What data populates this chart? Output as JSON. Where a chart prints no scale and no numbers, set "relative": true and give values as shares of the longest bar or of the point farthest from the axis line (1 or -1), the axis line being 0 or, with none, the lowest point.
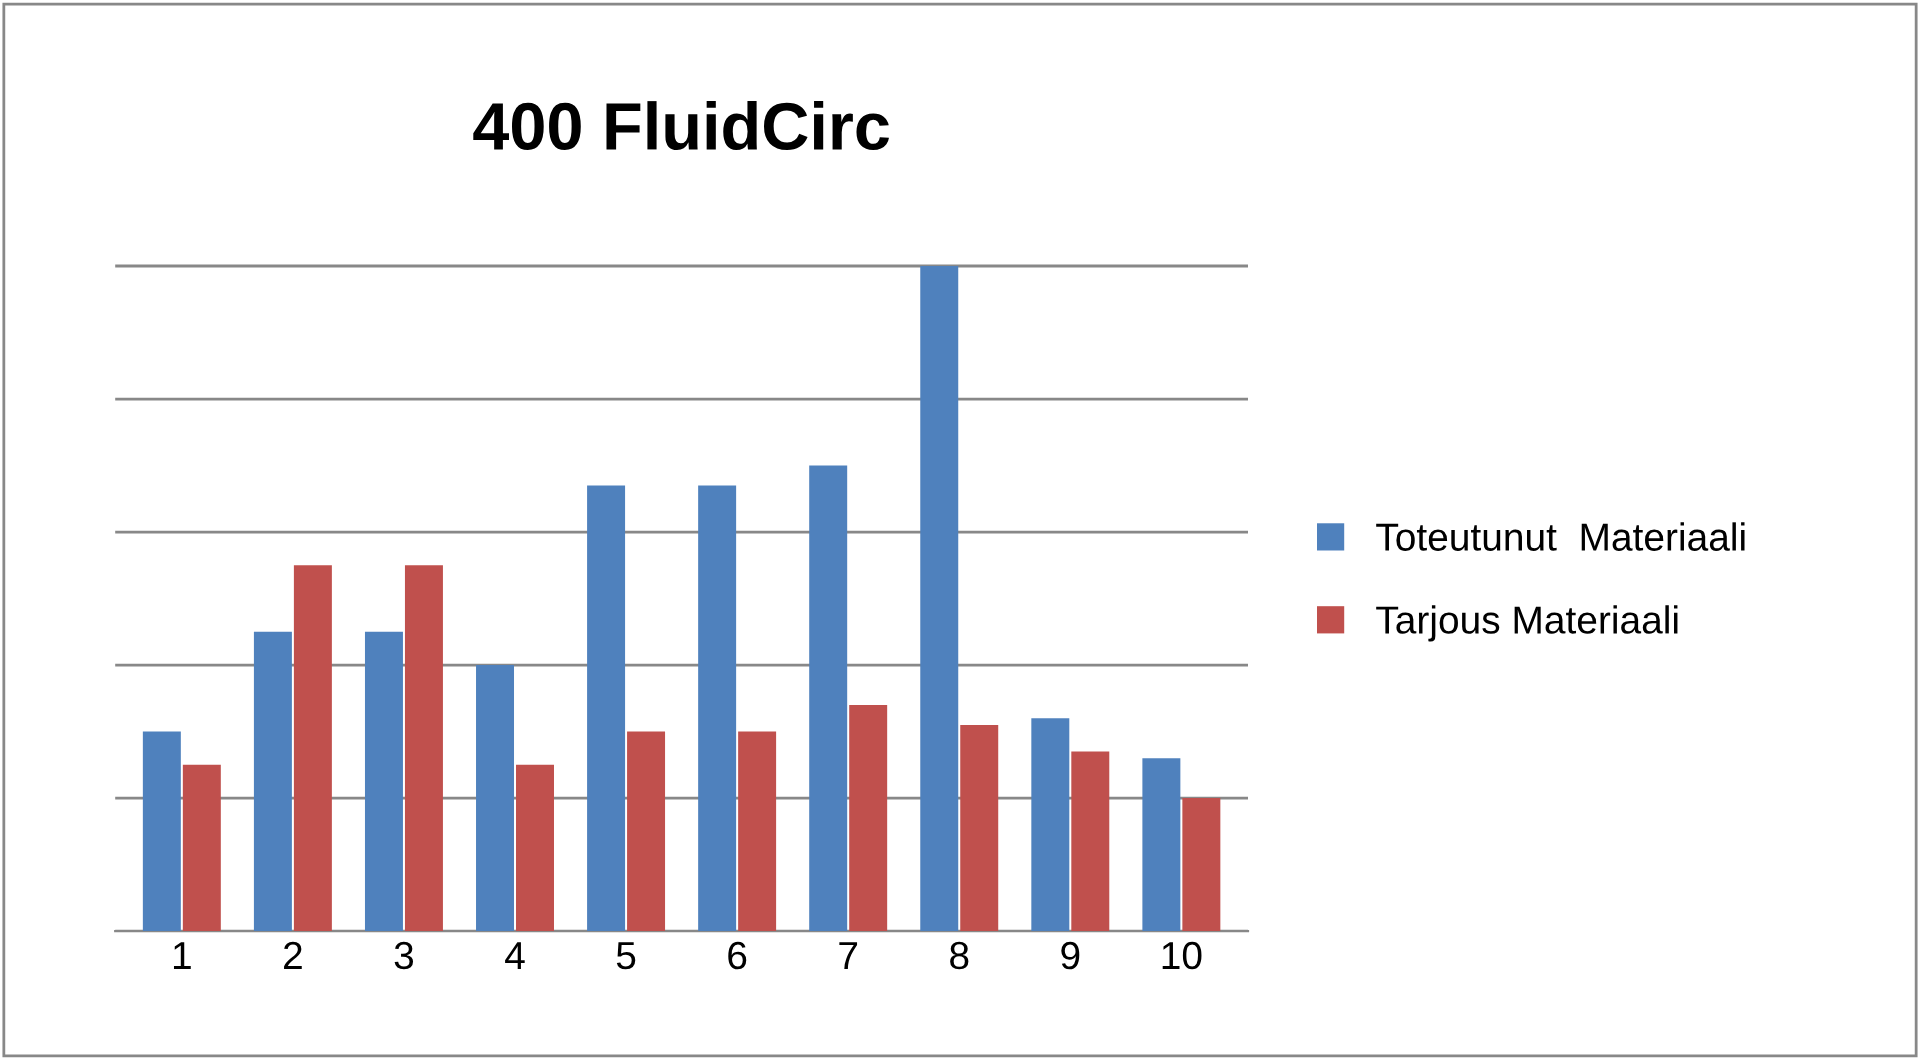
{
  "chart_data": {
    "type": "bar",
    "title": "400 FluidCirc",
    "relative": true,
    "categories": [
      "1",
      "2",
      "3",
      "4",
      "5",
      "6",
      "7",
      "8",
      "9",
      "10"
    ],
    "series": [
      {
        "name": "Toteutunut  Materiaali",
        "color": "#4f81bd",
        "values": [
          0.3,
          0.45,
          0.45,
          0.4,
          0.67,
          0.67,
          0.7,
          1,
          0.32,
          0.26
        ]
      },
      {
        "name": "Tarjous Materiaali",
        "color": "#c0504d",
        "values": [
          0.25,
          0.55,
          0.55,
          0.25,
          0.3,
          0.3,
          0.34,
          0.31,
          0.27,
          0.2
        ]
      }
    ],
    "grid": "y",
    "legend": "right"
  }
}
